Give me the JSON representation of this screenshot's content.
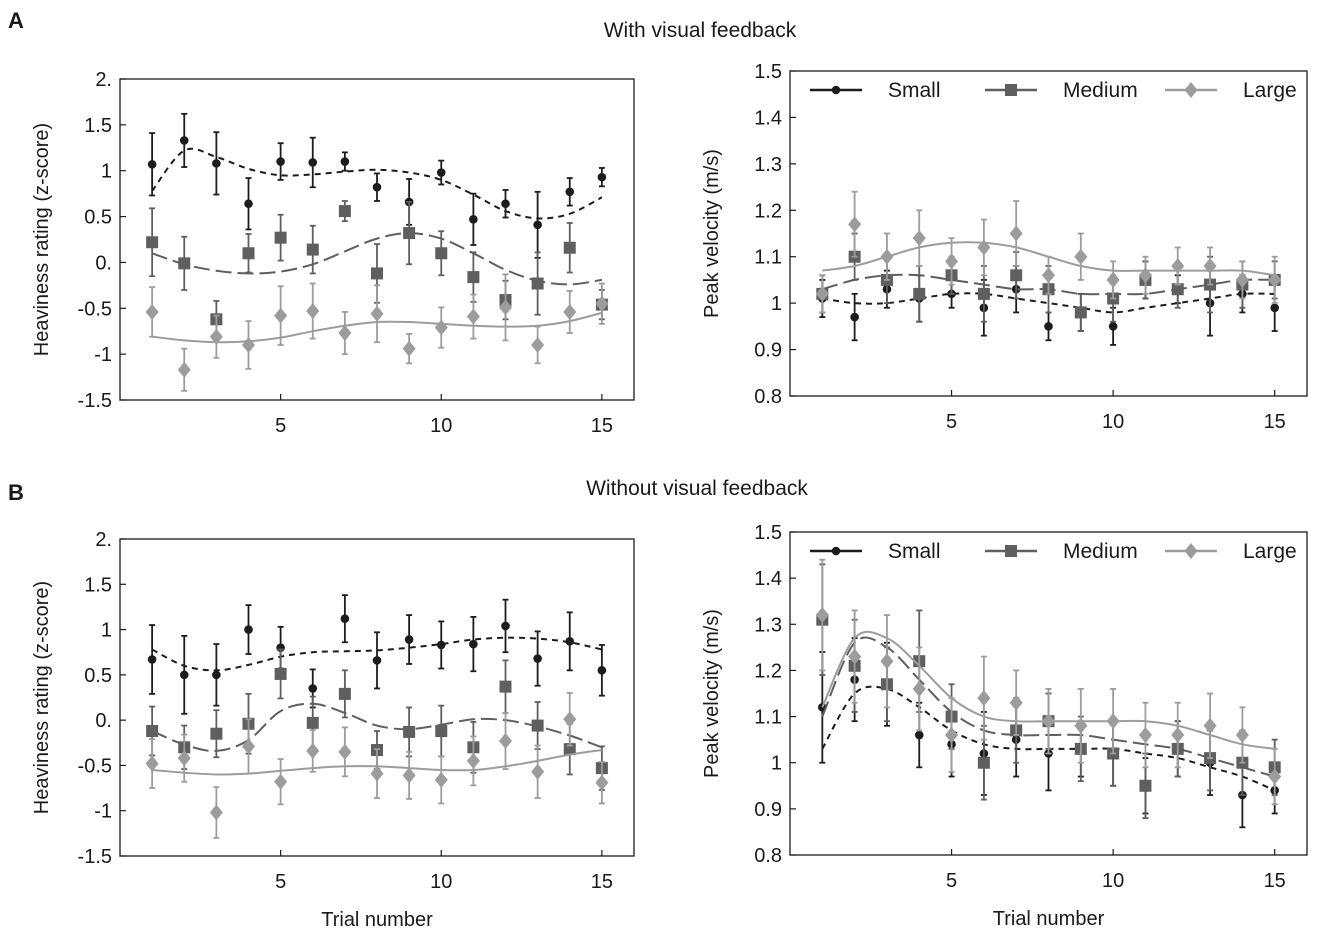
{
  "panel_letters": [
    "A",
    "B"
  ],
  "row_titles": [
    "With visual feedback",
    "Without visual feedback"
  ],
  "colors": {
    "Small": "#1c1c1c",
    "Medium": "#5f5f5f",
    "Large": "#9c9c9c",
    "axis": "#1a1a1a"
  },
  "legend_labels": [
    "Small",
    "Medium",
    "Large"
  ],
  "chart_data": [
    {
      "type": "scatter",
      "title": "",
      "xlabel": "",
      "ylabel": "Heaviness rating (z-score)",
      "xlim": [
        0,
        16
      ],
      "ylim": [
        -1.5,
        2
      ],
      "xticks": [
        "5",
        "10",
        "15"
      ],
      "yticks": [
        "-1.5",
        "-1",
        "-0.5",
        "0.",
        "0.5",
        "1",
        "1.5",
        "2."
      ],
      "x": [
        1,
        2,
        3,
        4,
        5,
        6,
        7,
        8,
        9,
        10,
        11,
        12,
        13,
        14,
        15
      ],
      "legend": null,
      "series": [
        {
          "name": "Small",
          "marker": "circle",
          "values": [
            1.07,
            1.33,
            1.08,
            0.64,
            1.1,
            1.09,
            1.1,
            0.82,
            0.66,
            0.98,
            0.47,
            0.64,
            0.41,
            0.77,
            0.93
          ],
          "errors": [
            0.34,
            0.29,
            0.34,
            0.28,
            0.2,
            0.27,
            0.1,
            0.15,
            0.25,
            0.13,
            0.28,
            0.15,
            0.36,
            0.15,
            0.1
          ],
          "trend": [
            0.78,
            1.22,
            1.15,
            1.02,
            0.95,
            0.96,
            0.99,
            1.01,
            0.98,
            0.9,
            0.74,
            0.56,
            0.48,
            0.53,
            0.71
          ]
        },
        {
          "name": "Medium",
          "marker": "square",
          "values": [
            0.22,
            -0.01,
            -0.62,
            0.1,
            0.27,
            0.14,
            0.56,
            -0.12,
            0.32,
            0.1,
            -0.16,
            -0.41,
            -0.23,
            0.16,
            -0.46
          ],
          "errors": [
            0.37,
            0.29,
            0.2,
            0.21,
            0.25,
            0.26,
            0.11,
            0.32,
            0.34,
            0.24,
            0.27,
            0.21,
            0.34,
            0.27,
            0.16
          ],
          "trend": [
            0.1,
            -0.02,
            -0.09,
            -0.12,
            -0.1,
            -0.02,
            0.12,
            0.26,
            0.32,
            0.26,
            0.1,
            -0.08,
            -0.2,
            -0.24,
            -0.19
          ]
        },
        {
          "name": "Large",
          "marker": "diamond",
          "values": [
            -0.54,
            -1.17,
            -0.81,
            -0.9,
            -0.58,
            -0.53,
            -0.77,
            -0.56,
            -0.94,
            -0.71,
            -0.59,
            -0.49,
            -0.9,
            -0.54,
            -0.45
          ],
          "errors": [
            0.27,
            0.23,
            0.23,
            0.26,
            0.32,
            0.3,
            0.23,
            0.31,
            0.16,
            0.22,
            0.24,
            0.36,
            0.2,
            0.23,
            0.22
          ],
          "trend": [
            -0.81,
            -0.85,
            -0.87,
            -0.86,
            -0.82,
            -0.75,
            -0.69,
            -0.65,
            -0.65,
            -0.67,
            -0.69,
            -0.7,
            -0.69,
            -0.64,
            -0.55
          ]
        }
      ]
    },
    {
      "type": "scatter",
      "title": "",
      "xlabel": "",
      "ylabel": "Peak velocity (m/s)",
      "xlim": [
        0,
        16
      ],
      "ylim": [
        0.8,
        1.5
      ],
      "xticks": [
        "5",
        "10",
        "15"
      ],
      "yticks": [
        "0.8",
        "0.9",
        "1",
        "1.1",
        "1.2",
        "1.3",
        "1.4",
        "1.5"
      ],
      "x": [
        1,
        2,
        3,
        4,
        5,
        6,
        7,
        8,
        9,
        10,
        11,
        12,
        13,
        14,
        15
      ],
      "legend": "top",
      "series": [
        {
          "name": "Small",
          "marker": "circle",
          "values": [
            1.01,
            0.97,
            1.03,
            1.01,
            1.02,
            0.99,
            1.03,
            0.95,
            0.98,
            0.95,
            1.05,
            1.03,
            1.0,
            1.02,
            0.99
          ],
          "errors": [
            0.04,
            0.05,
            0.04,
            0.05,
            0.03,
            0.06,
            0.05,
            0.03,
            0.04,
            0.04,
            0.04,
            0.03,
            0.07,
            0.04,
            0.05
          ],
          "trend": [
            1.01,
            1.0,
            1.0,
            1.01,
            1.02,
            1.02,
            1.01,
            1.0,
            0.99,
            0.98,
            0.99,
            1.0,
            1.01,
            1.02,
            1.02
          ]
        },
        {
          "name": "Medium",
          "marker": "square",
          "values": [
            1.02,
            1.1,
            1.05,
            1.02,
            1.06,
            1.02,
            1.06,
            1.03,
            0.98,
            1.01,
            1.05,
            1.03,
            1.04,
            1.04,
            1.05
          ],
          "errors": [
            0.04,
            0.05,
            0.05,
            0.06,
            0.04,
            0.06,
            0.05,
            0.05,
            0.04,
            0.05,
            0.04,
            0.04,
            0.06,
            0.05,
            0.04
          ],
          "trend": [
            1.03,
            1.05,
            1.06,
            1.06,
            1.05,
            1.04,
            1.03,
            1.03,
            1.02,
            1.02,
            1.02,
            1.03,
            1.04,
            1.05,
            1.05
          ]
        },
        {
          "name": "Large",
          "marker": "diamond",
          "values": [
            1.02,
            1.17,
            1.1,
            1.14,
            1.09,
            1.12,
            1.15,
            1.06,
            1.1,
            1.05,
            1.06,
            1.08,
            1.08,
            1.05,
            1.05
          ],
          "errors": [
            0.04,
            0.07,
            0.05,
            0.06,
            0.05,
            0.06,
            0.07,
            0.04,
            0.05,
            0.04,
            0.04,
            0.04,
            0.04,
            0.04,
            0.05
          ],
          "trend": [
            1.07,
            1.08,
            1.1,
            1.12,
            1.13,
            1.13,
            1.12,
            1.1,
            1.08,
            1.07,
            1.07,
            1.07,
            1.07,
            1.07,
            1.06
          ]
        }
      ]
    },
    {
      "type": "scatter",
      "title": "",
      "xlabel": "Trial number",
      "ylabel": "Heaviness rating (z-score)",
      "xlim": [
        0,
        16
      ],
      "ylim": [
        -1.5,
        2
      ],
      "xticks": [
        "5",
        "10",
        "15"
      ],
      "yticks": [
        "-1.5",
        "-1",
        "-0.5",
        "0.",
        "0.5",
        "1",
        "1.5",
        "2."
      ],
      "x": [
        1,
        2,
        3,
        4,
        5,
        6,
        7,
        8,
        9,
        10,
        11,
        12,
        13,
        14,
        15
      ],
      "legend": null,
      "series": [
        {
          "name": "Small",
          "marker": "circle",
          "values": [
            0.67,
            0.5,
            0.5,
            1.0,
            0.8,
            0.35,
            1.12,
            0.66,
            0.89,
            0.83,
            0.84,
            1.04,
            0.68,
            0.87,
            0.55
          ],
          "errors": [
            0.38,
            0.43,
            0.34,
            0.27,
            0.23,
            0.21,
            0.26,
            0.31,
            0.27,
            0.26,
            0.3,
            0.29,
            0.3,
            0.32,
            0.28
          ],
          "trend": [
            0.78,
            0.6,
            0.55,
            0.61,
            0.7,
            0.75,
            0.76,
            0.77,
            0.8,
            0.84,
            0.89,
            0.91,
            0.9,
            0.86,
            0.78
          ]
        },
        {
          "name": "Medium",
          "marker": "square",
          "values": [
            -0.12,
            -0.3,
            -0.15,
            -0.04,
            0.51,
            -0.03,
            0.29,
            -0.33,
            -0.13,
            -0.12,
            -0.3,
            0.37,
            -0.06,
            -0.32,
            -0.53
          ],
          "errors": [
            0.27,
            0.24,
            0.26,
            0.33,
            0.27,
            0.29,
            0.26,
            0.21,
            0.27,
            0.28,
            0.28,
            0.29,
            0.26,
            0.28,
            0.24
          ],
          "trend": [
            -0.12,
            -0.27,
            -0.34,
            -0.22,
            0.1,
            0.18,
            0.08,
            -0.06,
            -0.1,
            -0.05,
            0.01,
            0.0,
            -0.07,
            -0.17,
            -0.3
          ]
        },
        {
          "name": "Large",
          "marker": "diamond",
          "values": [
            -0.48,
            -0.42,
            -1.02,
            -0.29,
            -0.68,
            -0.34,
            -0.35,
            -0.59,
            -0.61,
            -0.66,
            -0.45,
            -0.23,
            -0.57,
            0.01,
            -0.69
          ],
          "errors": [
            0.27,
            0.26,
            0.28,
            0.3,
            0.25,
            0.23,
            0.27,
            0.27,
            0.26,
            0.26,
            0.27,
            0.31,
            0.29,
            0.29,
            0.23
          ],
          "trend": [
            -0.55,
            -0.58,
            -0.6,
            -0.59,
            -0.56,
            -0.53,
            -0.51,
            -0.51,
            -0.53,
            -0.55,
            -0.55,
            -0.51,
            -0.45,
            -0.38,
            -0.33
          ]
        }
      ]
    },
    {
      "type": "scatter",
      "title": "",
      "xlabel": "Trial number",
      "ylabel": "Peak velocity (m/s)",
      "xlim": [
        0,
        16
      ],
      "ylim": [
        0.8,
        1.5
      ],
      "xticks": [
        "5",
        "10",
        "15"
      ],
      "yticks": [
        "0.8",
        "0.9",
        "1",
        "1.1",
        "1.2",
        "1.3",
        "1.4",
        "1.5"
      ],
      "x": [
        1,
        2,
        3,
        4,
        5,
        6,
        7,
        8,
        9,
        10,
        11,
        12,
        13,
        14,
        15
      ],
      "legend": "top",
      "series": [
        {
          "name": "Small",
          "marker": "circle",
          "values": [
            1.12,
            1.18,
            1.17,
            1.06,
            1.04,
            1.02,
            1.05,
            1.02,
            1.03,
            1.02,
            0.95,
            1.03,
            1.0,
            0.93,
            0.94
          ],
          "errors": [
            0.12,
            0.09,
            0.09,
            0.07,
            0.07,
            0.09,
            0.08,
            0.08,
            0.06,
            0.07,
            0.06,
            0.06,
            0.07,
            0.07,
            0.05
          ],
          "trend": [
            1.03,
            1.15,
            1.16,
            1.12,
            1.07,
            1.04,
            1.03,
            1.03,
            1.03,
            1.03,
            1.02,
            1.01,
            0.99,
            0.97,
            0.94
          ]
        },
        {
          "name": "Medium",
          "marker": "square",
          "values": [
            1.31,
            1.21,
            1.17,
            1.22,
            1.1,
            1.0,
            1.07,
            1.09,
            1.03,
            1.02,
            0.95,
            1.03,
            1.01,
            1.0,
            0.99
          ],
          "errors": [
            0.12,
            0.1,
            0.08,
            0.11,
            0.07,
            0.08,
            0.07,
            0.06,
            0.07,
            0.07,
            0.07,
            0.06,
            0.07,
            0.07,
            0.06
          ],
          "trend": [
            1.1,
            1.26,
            1.25,
            1.18,
            1.11,
            1.07,
            1.06,
            1.06,
            1.06,
            1.05,
            1.04,
            1.03,
            1.01,
            0.99,
            0.97
          ]
        },
        {
          "name": "Large",
          "marker": "diamond",
          "values": [
            1.32,
            1.23,
            1.22,
            1.16,
            1.06,
            1.14,
            1.13,
            1.09,
            1.08,
            1.09,
            1.06,
            1.06,
            1.08,
            1.06,
            0.97
          ],
          "errors": [
            0.12,
            0.1,
            0.1,
            0.09,
            0.08,
            0.09,
            0.07,
            0.07,
            0.08,
            0.07,
            0.07,
            0.07,
            0.07,
            0.06,
            0.06
          ],
          "trend": [
            1.12,
            1.27,
            1.27,
            1.21,
            1.14,
            1.1,
            1.09,
            1.09,
            1.09,
            1.09,
            1.09,
            1.08,
            1.06,
            1.04,
            1.03
          ]
        }
      ]
    }
  ]
}
